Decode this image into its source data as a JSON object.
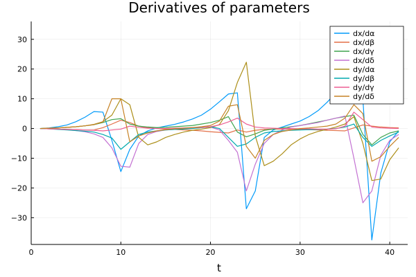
{
  "chart_data": {
    "type": "line",
    "title": "Derivatives of parameters",
    "xlabel": "t",
    "ylabel": "",
    "xlim": [
      0,
      42
    ],
    "ylim": [
      -39,
      36
    ],
    "xticks": [
      0,
      10,
      20,
      30,
      40
    ],
    "yticks": [
      -30,
      -20,
      -10,
      0,
      10,
      20,
      30
    ],
    "grid": true,
    "legend_position": "top-right",
    "x": [
      1,
      2,
      3,
      4,
      5,
      6,
      7,
      8,
      9,
      10,
      11,
      12,
      13,
      14,
      15,
      16,
      17,
      18,
      19,
      20,
      21,
      22,
      23,
      24,
      25,
      26,
      27,
      28,
      29,
      30,
      31,
      32,
      33,
      34,
      35,
      36,
      37,
      38,
      39,
      40,
      41
    ],
    "series": [
      {
        "name": "dx/dα",
        "color": "#009AFA",
        "values": [
          0,
          0.2,
          0.6,
          1.2,
          2.3,
          3.8,
          5.7,
          5.5,
          -4,
          -14.5,
          -7,
          -2.5,
          -0.8,
          0.2,
          0.8,
          1.4,
          2.2,
          3.2,
          4.5,
          6.5,
          9,
          11.6,
          12,
          -27,
          -21,
          -3,
          -0.5,
          0.5,
          1.5,
          2.5,
          4,
          6,
          8.8,
          12,
          17,
          19.5,
          10,
          -37.5,
          -15,
          -4.5,
          -0.8
        ]
      },
      {
        "name": "dx/dβ",
        "color": "#E36F47",
        "values": [
          0,
          -0.1,
          -0.2,
          -0.3,
          -0.4,
          -0.5,
          -0.5,
          0.3,
          1.5,
          2.8,
          2,
          0.8,
          0.3,
          0,
          -0.2,
          -0.3,
          -0.5,
          -0.6,
          -0.8,
          -1.1,
          -1.3,
          -1.5,
          -0.5,
          -1.2,
          -0.6,
          -0.3,
          -0.2,
          -0.2,
          -0.3,
          -0.3,
          -0.4,
          -0.5,
          -0.6,
          -0.7,
          -0.8,
          0.2,
          1.2,
          0.8,
          0.5,
          0.3,
          0.2
        ]
      },
      {
        "name": "dx/dγ",
        "color": "#3EA44E",
        "values": [
          0,
          0.1,
          0.2,
          0.4,
          0.6,
          0.9,
          1.3,
          2,
          3,
          3.3,
          1.5,
          0.8,
          0.5,
          0.3,
          0.4,
          0.6,
          0.8,
          1,
          1.5,
          2,
          2.8,
          4,
          -1.2,
          -2.8,
          -1.8,
          -0.6,
          -0.2,
          0.2,
          0.6,
          1,
          1.6,
          2.2,
          2.8,
          3.5,
          4,
          4.5,
          -2,
          -5.5,
          -3,
          -1.5,
          -0.8
        ]
      },
      {
        "name": "dx/dδ",
        "color": "#C371D2",
        "values": [
          0,
          -0.1,
          -0.2,
          -0.4,
          -0.7,
          -1.1,
          -1.8,
          -3,
          -6.5,
          -12.7,
          -13,
          -5,
          -2,
          -1,
          -0.5,
          -0.3,
          -0.1,
          0.1,
          0.3,
          0.5,
          -0.5,
          -4,
          -8,
          -21,
          -12,
          -5,
          -2,
          -0.5,
          0.5,
          1,
          1.5,
          2,
          2.8,
          3.5,
          4.2,
          -10,
          -25,
          -21,
          -9,
          -4,
          -2
        ]
      },
      {
        "name": "dy/dα",
        "color": "#AC8E18",
        "values": [
          0,
          0.1,
          0.2,
          0.4,
          0.6,
          0.9,
          1.4,
          2.3,
          4.5,
          10,
          8,
          -3,
          -5.5,
          -4.5,
          -3,
          -2,
          -1.2,
          -0.6,
          -0.2,
          0.3,
          1.3,
          6,
          15.5,
          22.3,
          -2.5,
          -12.5,
          -11,
          -8.5,
          -5.5,
          -3.5,
          -2,
          -1,
          -0.3,
          0.5,
          1.5,
          4,
          -5,
          -17.5,
          -17,
          -10.5,
          -6.5
        ]
      },
      {
        "name": "dy/dβ",
        "color": "#00A9AD",
        "values": [
          0,
          -0.1,
          -0.3,
          -0.5,
          -0.7,
          -0.9,
          -1.2,
          -2,
          -3.2,
          -7,
          -4.5,
          -2,
          -1.2,
          -0.8,
          -0.5,
          -0.3,
          -0.2,
          0,
          0.3,
          0.6,
          0,
          -3,
          -6,
          -5.2,
          -3,
          -1.5,
          -1,
          -0.8,
          -0.6,
          -0.5,
          -0.4,
          -0.3,
          -0.2,
          0,
          0.5,
          1.5,
          -3,
          -6,
          -4,
          -2.5,
          -1.2
        ]
      },
      {
        "name": "dy/dγ",
        "color": "#ED5E93",
        "values": [
          0,
          -0.1,
          -0.2,
          -0.3,
          -0.4,
          -0.5,
          -0.6,
          -0.8,
          -0.5,
          -0.2,
          0.8,
          0.4,
          0.1,
          0,
          0,
          0.1,
          0.2,
          0.3,
          0.4,
          0.6,
          1.2,
          2.2,
          3.5,
          1.5,
          0.5,
          0.2,
          0.1,
          0,
          0,
          -0.1,
          -0.1,
          -0.2,
          -0.2,
          -0.1,
          0.8,
          5.5,
          3,
          0.5,
          0.2,
          0.1,
          0
        ]
      },
      {
        "name": "dy/dδ",
        "color": "#C68225",
        "values": [
          0,
          0.1,
          0.2,
          0.4,
          0.6,
          0.9,
          1.3,
          2.2,
          10,
          10,
          -4.5,
          -2.5,
          -1.5,
          -0.8,
          -0.4,
          -0.1,
          0.1,
          0.3,
          0.6,
          1,
          2.5,
          7.5,
          8,
          -6,
          -10,
          -4,
          -2,
          -1,
          -0.5,
          0,
          0.2,
          0.5,
          0.8,
          1.5,
          3.5,
          8,
          5,
          -11,
          -9.5,
          -6,
          -3
        ]
      }
    ]
  }
}
